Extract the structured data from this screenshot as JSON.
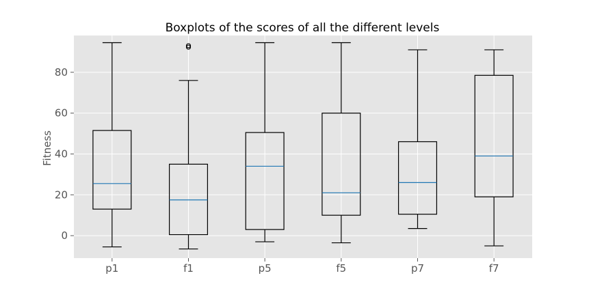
{
  "chart_data": {
    "type": "boxplot",
    "title": "Boxplots of the scores of all the different levels",
    "xlabel": "",
    "ylabel": "Fitness",
    "ylim": [
      -11,
      98
    ],
    "yticks": [
      0,
      20,
      40,
      60,
      80
    ],
    "grid": true,
    "legend": "none",
    "categories": [
      "p1",
      "f1",
      "p5",
      "f5",
      "p7",
      "f7"
    ],
    "boxes": [
      {
        "label": "p1",
        "whisker_low": -5.5,
        "q1": 13,
        "median": 25.5,
        "q3": 51.5,
        "whisker_high": 94.5,
        "outliers": []
      },
      {
        "label": "f1",
        "whisker_low": -6.5,
        "q1": 0.5,
        "median": 17.5,
        "q3": 35,
        "whisker_high": 76,
        "outliers": [
          92.3,
          93.0
        ]
      },
      {
        "label": "p5",
        "whisker_low": -3,
        "q1": 3,
        "median": 34,
        "q3": 50.5,
        "whisker_high": 94.5,
        "outliers": []
      },
      {
        "label": "f5",
        "whisker_low": -3.5,
        "q1": 10,
        "median": 21,
        "q3": 60,
        "whisker_high": 94.5,
        "outliers": []
      },
      {
        "label": "p7",
        "whisker_low": 3.5,
        "q1": 10.5,
        "median": 26,
        "q3": 46,
        "whisker_high": 91,
        "outliers": []
      },
      {
        "label": "f7",
        "whisker_low": -5,
        "q1": 19,
        "median": 39,
        "q3": 78.5,
        "whisker_high": 91,
        "outliers": []
      }
    ],
    "colors": {
      "plot_background": "#e5e5e5",
      "grid": "#ffffff",
      "box": "#000000",
      "median": "#1f77b4",
      "tick_text": "#555555",
      "title_text": "#000000"
    }
  }
}
